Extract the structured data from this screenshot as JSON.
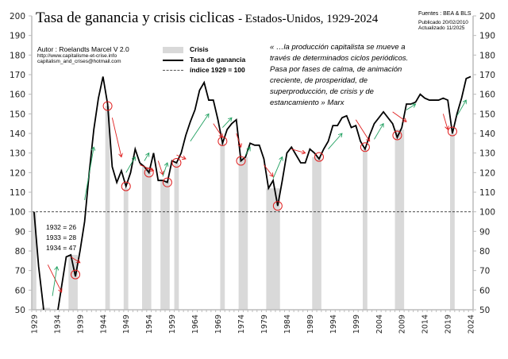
{
  "chart_data": {
    "type": "line",
    "title": "Tasa de ganancia y crisis ciclicas",
    "subtitle": "- Estados-Unidos, 1929-2024",
    "ylim": [
      50,
      200
    ],
    "yticks": [
      50,
      60,
      70,
      80,
      90,
      100,
      110,
      120,
      130,
      140,
      150,
      160,
      170,
      180,
      190,
      200
    ],
    "x_start": 1929,
    "x_end": 2024,
    "xtick_labels": [
      "1929",
      "1934",
      "1939",
      "1944",
      "1949",
      "1954",
      "1959",
      "1964",
      "1969",
      "1974",
      "1979",
      "1984",
      "1989",
      "1994",
      "1999",
      "2004",
      "2009",
      "2014",
      "2019",
      "2024"
    ],
    "series": [
      {
        "name": "Tasa de ganancia",
        "color": "#000000",
        "values": [
          100,
          72,
          52,
          26,
          28,
          47,
          62,
          77,
          78,
          67,
          80,
          95,
          120,
          142,
          158,
          169,
          155,
          123,
          115,
          121,
          113,
          120,
          132,
          125,
          123,
          120,
          130,
          116,
          116,
          115,
          126,
          125,
          130,
          139,
          146,
          152,
          162,
          166,
          157,
          157,
          147,
          135,
          142,
          145,
          147,
          126,
          128,
          135,
          134,
          134,
          127,
          112,
          116,
          103,
          116,
          130,
          133,
          129,
          125,
          125,
          132,
          130,
          127,
          132,
          136,
          144,
          144,
          148,
          149,
          143,
          144,
          136,
          132,
          139,
          145,
          148,
          151,
          148,
          145,
          138,
          143,
          155,
          155,
          156,
          160,
          158,
          157,
          157,
          157,
          158,
          157,
          140,
          150,
          158,
          168,
          169
        ]
      }
    ],
    "crisis": {
      "name": "Crisis",
      "color": "#d9d9d9",
      "periods": [
        [
          1929,
          1929,
          100
        ],
        [
          1931,
          1932,
          51
        ],
        [
          1937,
          1938,
          78
        ],
        [
          1945,
          1945,
          154
        ],
        [
          1949,
          1949,
          112
        ],
        [
          1953,
          1954,
          123
        ],
        [
          1957,
          1958,
          116
        ],
        [
          1960,
          1960,
          125
        ],
        [
          1970,
          1970,
          135
        ],
        [
          1974,
          1975,
          128
        ],
        [
          1980,
          1982,
          112
        ],
        [
          1990,
          1991,
          128
        ],
        [
          2001,
          2001,
          132
        ],
        [
          2008,
          2009,
          142
        ],
        [
          2020,
          2020,
          140
        ]
      ]
    },
    "reference": {
      "name": "índice 1929 = 100",
      "value": 100
    },
    "circles": [
      [
        1938,
        68
      ],
      [
        1945,
        154
      ],
      [
        1949,
        113
      ],
      [
        1954,
        120
      ],
      [
        1958,
        115
      ],
      [
        1960,
        125
      ],
      [
        1970,
        136
      ],
      [
        1974,
        126
      ],
      [
        1982,
        103
      ],
      [
        1991,
        128
      ],
      [
        2001,
        133
      ],
      [
        2008,
        139
      ],
      [
        2020,
        141
      ]
    ],
    "arrows_down": [
      [
        1932,
        73,
        1935,
        59
      ],
      [
        1937,
        77,
        1939,
        74
      ],
      [
        1946,
        148,
        1948,
        128
      ],
      [
        1952,
        124,
        1955,
        121
      ],
      [
        1956,
        126,
        1957,
        119
      ],
      [
        1960,
        129,
        1962,
        127
      ],
      [
        1968,
        145,
        1970,
        138
      ],
      [
        1973,
        140,
        1974,
        133
      ],
      [
        1979,
        124,
        1981,
        118
      ],
      [
        1985,
        132,
        1988,
        130
      ],
      [
        1999,
        147,
        2002,
        136
      ],
      [
        2007,
        151,
        2010,
        146
      ],
      [
        2018,
        150,
        2019,
        142
      ]
    ],
    "arrows_up": [
      [
        1933,
        57,
        1934,
        72
      ],
      [
        1940,
        106,
        1942,
        133
      ],
      [
        1949,
        120,
        1951,
        128
      ],
      [
        1953,
        126,
        1954,
        130
      ],
      [
        1957,
        118,
        1958,
        125
      ],
      [
        1963,
        136,
        1967,
        150
      ],
      [
        1970,
        143,
        1972,
        148
      ],
      [
        1975,
        129,
        1976,
        133
      ],
      [
        1981,
        117,
        1983,
        128
      ],
      [
        1993,
        132,
        1996,
        140
      ],
      [
        2003,
        137,
        2005,
        145
      ],
      [
        2010,
        152,
        2012,
        155
      ],
      [
        2021,
        149,
        2023,
        157
      ]
    ],
    "annotations": [
      "1932 = 26",
      "1933 = 28",
      "1934 = 47"
    ]
  },
  "author": {
    "name": "Autor : Roelandts Marcel  V 2.0",
    "url": "http://www.capitalisme-et-crise.info",
    "email": "capitalism_and_crises@hotmail.com"
  },
  "sources": {
    "line1": "Fuentes : BEA & BLS",
    "line2": "Publicado 20/02/2010",
    "line3": "Actualizado 11/2025"
  },
  "quote": "« …la producción capitalista se mueve a través de determinados ciclos periódicos. Pasa por fases de calma, de animación creciente, de prosperidad, de superproducción, de crisis y de estancamiento »   Marx"
}
